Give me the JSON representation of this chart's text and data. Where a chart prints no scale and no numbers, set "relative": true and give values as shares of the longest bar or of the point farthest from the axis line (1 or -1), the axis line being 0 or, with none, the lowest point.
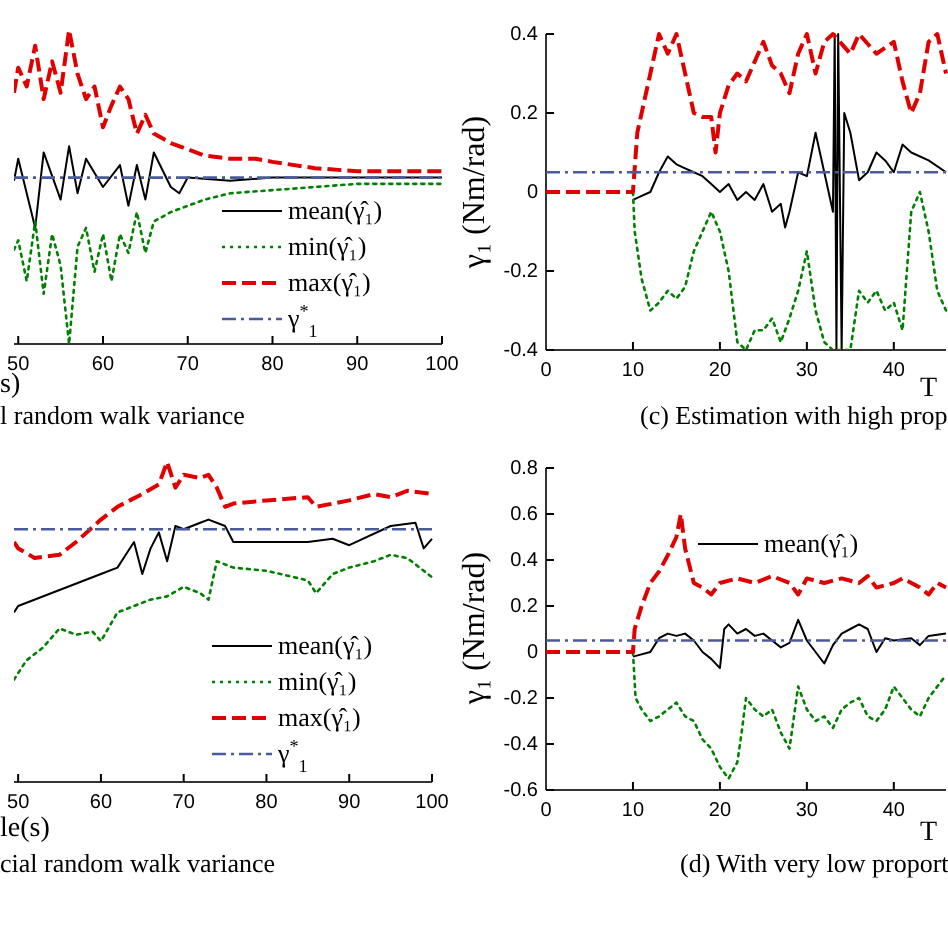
{
  "chart_data": [
    {
      "type": "line",
      "title": "l random walk variance",
      "xlabel": "s)",
      "relative": true,
      "tick_labels": "x",
      "xlim": [
        49.5,
        100
      ],
      "xticks": [
        50,
        60,
        70,
        80,
        90,
        100
      ],
      "legend": "right",
      "series": [
        {
          "name": "mean(γ̂₁)",
          "color": "#000000",
          "line_style": "solid",
          "x": [
            49.5,
            50,
            52,
            53,
            55,
            56,
            57,
            58,
            60,
            62,
            63,
            64,
            65,
            66,
            68,
            69,
            70,
            75,
            80,
            90,
            100
          ],
          "values": [
            0.52,
            0.59,
            0.37,
            0.61,
            0.46,
            0.63,
            0.48,
            0.59,
            0.5,
            0.57,
            0.44,
            0.57,
            0.46,
            0.61,
            0.5,
            0.48,
            0.53,
            0.52,
            0.53,
            0.53,
            0.53
          ]
        },
        {
          "name": "min(γ̂₁)",
          "color": "#008000",
          "line_style": "dotted",
          "x": [
            49.5,
            50,
            51,
            52,
            53,
            54,
            55,
            56,
            57,
            58,
            59,
            60,
            61,
            62,
            63,
            64,
            65,
            66,
            68,
            70,
            72,
            75,
            80,
            85,
            90,
            100
          ],
          "values": [
            0.3,
            0.33,
            0.2,
            0.39,
            0.16,
            0.35,
            0.25,
            0,
            0.31,
            0.37,
            0.23,
            0.35,
            0.2,
            0.35,
            0.29,
            0.42,
            0.29,
            0.39,
            0.42,
            0.44,
            0.46,
            0.48,
            0.49,
            0.5,
            0.51,
            0.51
          ]
        },
        {
          "name": "max(γ̂₁)",
          "color": "#e00000",
          "line_style": "dashed",
          "x": [
            49.5,
            50,
            51,
            52,
            53,
            54,
            55,
            56,
            57,
            58,
            59,
            60,
            61,
            62,
            63,
            64,
            65,
            66,
            68,
            70,
            72,
            75,
            78,
            80,
            85,
            90,
            95,
            100
          ],
          "values": [
            0.8,
            0.88,
            0.82,
            0.95,
            0.78,
            0.9,
            0.8,
            1.0,
            0.86,
            0.78,
            0.82,
            0.69,
            0.76,
            0.82,
            0.78,
            0.67,
            0.73,
            0.67,
            0.64,
            0.62,
            0.6,
            0.59,
            0.59,
            0.58,
            0.56,
            0.55,
            0.55,
            0.55
          ]
        },
        {
          "name": "γ$^{*}$$_{1}$",
          "color": "#4a5a9a",
          "line_style": "dashdot",
          "x": [
            49.5,
            100
          ],
          "values": [
            0.53,
            0.53
          ]
        }
      ]
    },
    {
      "type": "line",
      "title": "(c) Estimation with high prop",
      "xlabel": "T",
      "ylabel": "γ₁ (Nm/rad)",
      "xlim": [
        0,
        46
      ],
      "xticks": [
        0,
        10,
        20,
        30,
        40
      ],
      "ylim": [
        -0.4,
        0.4
      ],
      "yticks": [
        -0.4,
        -0.2,
        0,
        0.2,
        0.4
      ],
      "series": [
        {
          "color": "#000000",
          "line_style": "solid",
          "x": [
            10,
            11,
            12,
            13,
            14,
            15,
            16,
            17,
            18,
            19,
            20,
            21,
            22,
            23,
            24,
            25,
            26,
            27,
            27.5,
            28,
            29,
            30,
            31,
            32,
            33,
            33.2,
            33.4,
            33.6,
            34,
            34.3,
            35,
            36,
            37,
            38,
            39,
            40,
            41,
            42,
            44,
            46
          ],
          "values": [
            -0.02,
            -0.01,
            0,
            0.05,
            0.09,
            0.07,
            0.06,
            0.05,
            0.04,
            0.02,
            0,
            0.02,
            -0.02,
            0,
            -0.02,
            0.02,
            -0.05,
            -0.03,
            -0.09,
            -0.05,
            0.05,
            0.04,
            0.15,
            0.05,
            -0.05,
            0.4,
            -0.4,
            0.4,
            -0.4,
            0.2,
            0.15,
            0.03,
            0.05,
            0.1,
            0.08,
            0.05,
            0.12,
            0.1,
            0.08,
            0.05
          ]
        },
        {
          "color": "#008000",
          "line_style": "dotted",
          "x": [
            10,
            10.2,
            11,
            12,
            13,
            14,
            15,
            16,
            17,
            18,
            19,
            20,
            21,
            22,
            23,
            24,
            25,
            26,
            27,
            28,
            29,
            30,
            31,
            32,
            33,
            35,
            36,
            37,
            38,
            39,
            40,
            41,
            42,
            43,
            44,
            45,
            46
          ],
          "values": [
            0,
            -0.1,
            -0.22,
            -0.3,
            -0.28,
            -0.25,
            -0.27,
            -0.24,
            -0.15,
            -0.1,
            -0.05,
            -0.1,
            -0.2,
            -0.38,
            -0.4,
            -0.35,
            -0.35,
            -0.32,
            -0.38,
            -0.32,
            -0.25,
            -0.15,
            -0.3,
            -0.38,
            -0.4,
            -0.4,
            -0.25,
            -0.28,
            -0.25,
            -0.3,
            -0.28,
            -0.35,
            -0.05,
            0,
            -0.1,
            -0.25,
            -0.3
          ]
        },
        {
          "color": "#e00000",
          "line_style": "dashed",
          "x": [
            0,
            10,
            10.5,
            12,
            13,
            14,
            15,
            16,
            17,
            18,
            19,
            19.5,
            20,
            21,
            22,
            23,
            24,
            25,
            26,
            27,
            28,
            29,
            30,
            31,
            32,
            33,
            35,
            36,
            38,
            40,
            41,
            42,
            43,
            44,
            45,
            46
          ],
          "values": [
            0,
            0,
            0.15,
            0.3,
            0.4,
            0.35,
            0.4,
            0.3,
            0.2,
            0.19,
            0.19,
            0.1,
            0.2,
            0.27,
            0.3,
            0.28,
            0.33,
            0.38,
            0.32,
            0.3,
            0.25,
            0.35,
            0.4,
            0.3,
            0.38,
            0.4,
            0.35,
            0.4,
            0.35,
            0.38,
            0.28,
            0.2,
            0.25,
            0.38,
            0.4,
            0.3
          ]
        },
        {
          "color": "#4a5a9a",
          "line_style": "dashdot",
          "x": [
            0,
            46
          ],
          "values": [
            0.05,
            0.05
          ]
        }
      ]
    },
    {
      "type": "line",
      "title": "cial random walk variance",
      "xlabel": "le(s)",
      "relative": true,
      "tick_labels": "x",
      "xlim": [
        49.5,
        100
      ],
      "xticks": [
        50,
        60,
        70,
        80,
        90,
        100
      ],
      "legend": "right",
      "series": [
        {
          "name": "mean(γ̂₁)",
          "color": "#000000",
          "line_style": "solid",
          "x": [
            49.5,
            50,
            55,
            60,
            62,
            63,
            64,
            65,
            66,
            67,
            68,
            69,
            70,
            72,
            73,
            75,
            76,
            80,
            85,
            88,
            90,
            95,
            98,
            99,
            100
          ],
          "values": [
            0.53,
            0.55,
            0.6,
            0.65,
            0.67,
            0.71,
            0.75,
            0.65,
            0.73,
            0.78,
            0.69,
            0.8,
            0.79,
            0.81,
            0.82,
            0.8,
            0.75,
            0.75,
            0.75,
            0.76,
            0.74,
            0.8,
            0.81,
            0.73,
            0.76
          ]
        },
        {
          "name": "min(γ̂₁)",
          "color": "#008000",
          "line_style": "dotted",
          "x": [
            49.5,
            51,
            53,
            55,
            57,
            59,
            60,
            62,
            64,
            66,
            68,
            70,
            72,
            73,
            74,
            76,
            80,
            85,
            86,
            88,
            90,
            93,
            95,
            97,
            100
          ],
          "values": [
            0.32,
            0.38,
            0.42,
            0.48,
            0.46,
            0.47,
            0.44,
            0.53,
            0.55,
            0.57,
            0.58,
            0.61,
            0.59,
            0.57,
            0.69,
            0.67,
            0.66,
            0.63,
            0.59,
            0.65,
            0.67,
            0.69,
            0.71,
            0.7,
            0.64
          ]
        },
        {
          "name": "max(γ̂₁)",
          "color": "#e00000",
          "line_style": "dashed",
          "x": [
            49.5,
            50,
            52,
            55,
            57,
            60,
            62,
            65,
            67,
            68,
            69,
            70,
            72,
            73,
            74,
            75,
            76,
            80,
            85,
            86,
            88,
            90,
            93,
            95,
            97,
            100
          ],
          "values": [
            0.75,
            0.73,
            0.7,
            0.71,
            0.75,
            0.82,
            0.86,
            0.9,
            0.93,
            1.0,
            0.92,
            0.96,
            0.95,
            0.96,
            0.92,
            0.86,
            0.87,
            0.88,
            0.89,
            0.86,
            0.87,
            0.88,
            0.9,
            0.89,
            0.91,
            0.9
          ]
        },
        {
          "name": "γ$^{*}$$_{1}$",
          "color": "#4a5a9a",
          "line_style": "dashdot",
          "x": [
            49.5,
            100
          ],
          "values": [
            0.79,
            0.79
          ]
        }
      ]
    },
    {
      "type": "line",
      "title": "(d) With very low proport",
      "xlabel": "T",
      "ylabel": "γ₁ (Nm/rad)",
      "xlim": [
        0,
        46
      ],
      "xticks": [
        0,
        10,
        20,
        30,
        40
      ],
      "ylim": [
        -0.6,
        0.8
      ],
      "yticks": [
        -0.6,
        -0.4,
        -0.2,
        0,
        0.2,
        0.4,
        0.6,
        0.8
      ],
      "legend": "top right",
      "series": [
        {
          "name": "mean(γ̂₁)",
          "color": "#000000",
          "line_style": "solid",
          "x": [
            10,
            12,
            13,
            14,
            15,
            16,
            17,
            18,
            19,
            20,
            20.5,
            21,
            22,
            23,
            24,
            25,
            26,
            27,
            28,
            29,
            30,
            31,
            32,
            33,
            34,
            35,
            36,
            37,
            38,
            39,
            40,
            42,
            43,
            44,
            46
          ],
          "values": [
            -0.02,
            0,
            0.06,
            0.08,
            0.07,
            0.08,
            0.05,
            0,
            -0.03,
            -0.07,
            0.1,
            0.12,
            0.08,
            0.1,
            0.07,
            0.08,
            0.05,
            0.02,
            0.04,
            0.14,
            0.05,
            0,
            -0.05,
            0.03,
            0.08,
            0.1,
            0.12,
            0.1,
            0,
            0.06,
            0.05,
            0.06,
            0.03,
            0.07,
            0.08
          ]
        },
        {
          "color": "#008000",
          "line_style": "dotted",
          "x": [
            10,
            10.3,
            11,
            12,
            13,
            14,
            15,
            16,
            17,
            18,
            19,
            20,
            21,
            22,
            22.5,
            23,
            24,
            25,
            26,
            27,
            28,
            29,
            30,
            31,
            32,
            33,
            34,
            35,
            36,
            37,
            38,
            39,
            40,
            41,
            42,
            43,
            44,
            45,
            46
          ],
          "values": [
            0,
            -0.2,
            -0.25,
            -0.3,
            -0.28,
            -0.25,
            -0.22,
            -0.28,
            -0.3,
            -0.38,
            -0.42,
            -0.5,
            -0.55,
            -0.48,
            -0.35,
            -0.2,
            -0.25,
            -0.28,
            -0.25,
            -0.35,
            -0.42,
            -0.15,
            -0.25,
            -0.3,
            -0.28,
            -0.33,
            -0.25,
            -0.22,
            -0.2,
            -0.28,
            -0.3,
            -0.25,
            -0.15,
            -0.2,
            -0.25,
            -0.28,
            -0.2,
            -0.15,
            -0.1
          ]
        },
        {
          "color": "#e00000",
          "line_style": "dashed",
          "x": [
            0,
            10,
            10.2,
            11,
            12,
            13,
            14,
            15,
            15.5,
            16,
            17,
            18,
            19,
            20,
            22,
            24,
            26,
            28,
            29,
            30,
            32,
            34,
            36,
            37,
            38,
            40,
            41,
            43,
            44,
            45,
            46
          ],
          "values": [
            0,
            0,
            0.1,
            0.2,
            0.3,
            0.35,
            0.42,
            0.5,
            0.6,
            0.45,
            0.3,
            0.28,
            0.25,
            0.3,
            0.32,
            0.3,
            0.33,
            0.3,
            0.25,
            0.32,
            0.3,
            0.32,
            0.3,
            0.33,
            0.28,
            0.3,
            0.32,
            0.28,
            0.25,
            0.3,
            0.28
          ]
        },
        {
          "color": "#4a5a9a",
          "line_style": "dashdot",
          "x": [
            0,
            46
          ],
          "values": [
            0.05,
            0.05
          ]
        }
      ]
    }
  ]
}
